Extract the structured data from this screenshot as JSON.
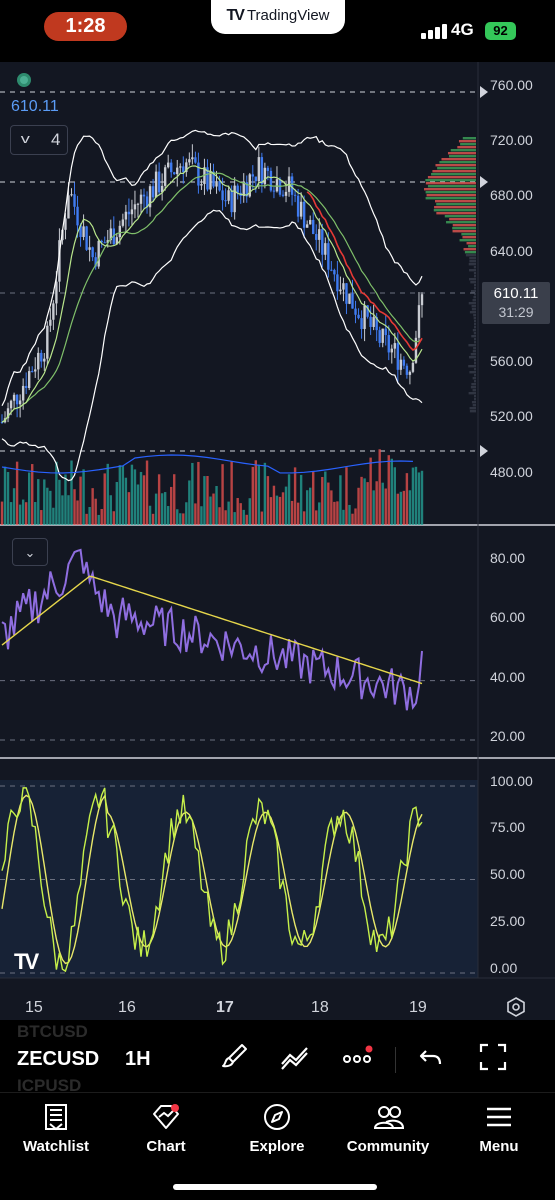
{
  "status_bar": {
    "time": "1:28",
    "app_name": "TradingView",
    "network": "4G",
    "battery": "92"
  },
  "chart": {
    "symbol": "ZECUSD",
    "interval": "1H",
    "indicator_count": "4",
    "overlay_price": "610.11",
    "last_price": "610.11",
    "countdown": "31:29",
    "price_axis": [
      "760.00",
      "720.00",
      "680.00",
      "640.00",
      "560.00",
      "520.00",
      "480.00"
    ],
    "rsi_axis": [
      "80.00",
      "60.00",
      "40.00",
      "20.00"
    ],
    "stoch_axis": [
      "100.00",
      "75.00",
      "50.00",
      "25.00",
      "0.00"
    ],
    "time_axis": [
      "15",
      "16",
      "17",
      "18",
      "19"
    ],
    "colors": {
      "background": "#131722",
      "up_candle": "#c9ccd3",
      "down_candle": "#3f7bf0",
      "rsi_line": "#8f6ee0",
      "rsi_ma": "#e5d64b",
      "stoch_k": "#c6f04a",
      "stoch_d": "#e8e86a",
      "bollinger": "#ffffff",
      "ema_red": "#e53935",
      "volume_up": "#26a69a",
      "volume_down": "#ef5350"
    }
  },
  "watchlist_ghosts": [
    "BTCUSD",
    "ICPUSD"
  ],
  "toolbar": {
    "icons": [
      "brush-icon",
      "drawing-tools-icon",
      "more-icon",
      "undo-icon",
      "fullscreen-icon"
    ]
  },
  "tabs": [
    {
      "label": "Watchlist",
      "icon": "watchlist-icon"
    },
    {
      "label": "Chart",
      "icon": "chart-icon"
    },
    {
      "label": "Explore",
      "icon": "compass-icon"
    },
    {
      "label": "Community",
      "icon": "community-icon"
    },
    {
      "label": "Menu",
      "icon": "menu-icon"
    }
  ]
}
